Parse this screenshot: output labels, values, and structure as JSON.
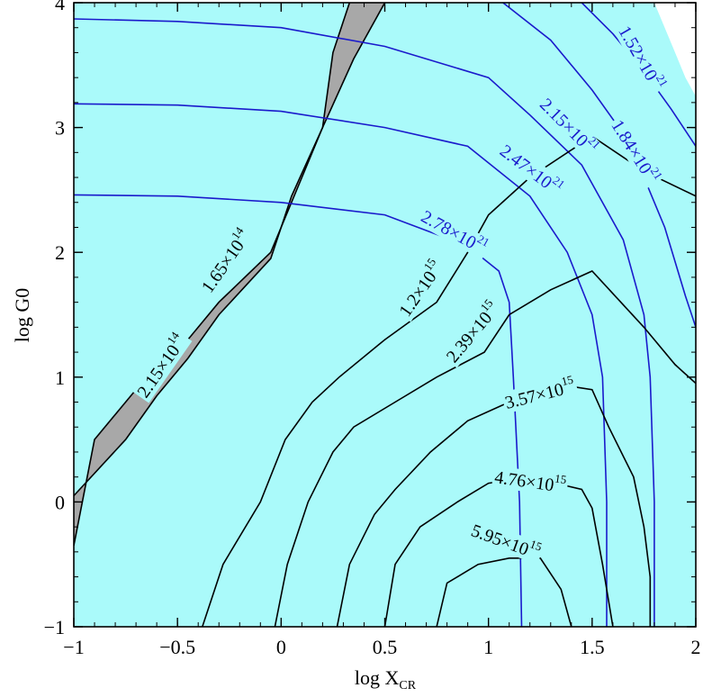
{
  "chart_data": {
    "type": "contour",
    "xlabel": "log X",
    "xlabel_sub": "CR",
    "ylabel": "log G0",
    "xlim": [
      -1,
      2
    ],
    "ylim": [
      -1,
      4
    ],
    "x_ticks": [
      {
        "value": -1,
        "label": "−1"
      },
      {
        "value": -0.5,
        "label": "−0.5"
      },
      {
        "value": 0,
        "label": "0"
      },
      {
        "value": 0.5,
        "label": "0.5"
      },
      {
        "value": 1,
        "label": "1"
      },
      {
        "value": 1.5,
        "label": "1.5"
      },
      {
        "value": 2,
        "label": "2"
      }
    ],
    "y_ticks": [
      {
        "value": -1,
        "label": "−1"
      },
      {
        "value": 0,
        "label": "0"
      },
      {
        "value": 1,
        "label": "1"
      },
      {
        "value": 2,
        "label": "2"
      },
      {
        "value": 3,
        "label": "3"
      },
      {
        "value": 4,
        "label": "4"
      }
    ],
    "colors": {
      "background": "#aafafa",
      "band": "#a8a8a8",
      "blue_contour": "#1a1acc",
      "black_contour": "#000000",
      "white_corner": "#ffffff"
    },
    "shaded_band": {
      "left_edge": [
        [
          -1,
          -0.35
        ],
        [
          -0.9,
          0.5
        ],
        [
          -0.65,
          1.0
        ],
        [
          -0.45,
          1.3
        ],
        [
          -0.3,
          1.6
        ],
        [
          -0.05,
          2.0
        ],
        [
          0.1,
          2.6
        ],
        [
          0.2,
          3.0
        ],
        [
          0.25,
          3.6
        ],
        [
          0.33,
          4.0
        ]
      ],
      "right_edge": [
        [
          -1,
          0.05
        ],
        [
          -0.75,
          0.5
        ],
        [
          -0.6,
          0.85
        ],
        [
          -0.45,
          1.15
        ],
        [
          -0.3,
          1.5
        ],
        [
          -0.05,
          1.95
        ],
        [
          0.05,
          2.45
        ],
        [
          0.2,
          3.0
        ],
        [
          0.35,
          3.55
        ],
        [
          0.5,
          4.0
        ]
      ]
    },
    "white_corner": [
      [
        1.8,
        4.0
      ],
      [
        2.0,
        4.0
      ],
      [
        2.0,
        3.25
      ],
      [
        1.95,
        3.4
      ],
      [
        1.9,
        3.6
      ]
    ],
    "blue_contours": [
      {
        "label_base": "2.78×10",
        "label_exp": "21",
        "points": [
          [
            -1,
            2.46
          ],
          [
            -0.5,
            2.45
          ],
          [
            0.0,
            2.4
          ],
          [
            0.5,
            2.3
          ],
          [
            0.9,
            2.05
          ],
          [
            1.05,
            1.85
          ],
          [
            1.1,
            1.6
          ],
          [
            1.12,
            1.0
          ],
          [
            1.15,
            0.0
          ],
          [
            1.16,
            -1.0
          ]
        ],
        "label_at": [
          0.83,
          2.15
        ],
        "label_angle": 29
      },
      {
        "label_base": "2.47×10",
        "label_exp": "21",
        "points": [
          [
            -1,
            3.19
          ],
          [
            -0.5,
            3.18
          ],
          [
            0.0,
            3.13
          ],
          [
            0.5,
            3.0
          ],
          [
            0.9,
            2.85
          ],
          [
            1.2,
            2.45
          ],
          [
            1.38,
            2.0
          ],
          [
            1.5,
            1.5
          ],
          [
            1.55,
            1.0
          ],
          [
            1.57,
            0.0
          ],
          [
            1.57,
            -1.0
          ]
        ],
        "label_at": [
          1.2,
          2.65
        ],
        "label_angle": 37
      },
      {
        "label_base": "2.15×10",
        "label_exp": "21",
        "points": [
          [
            -1,
            3.87
          ],
          [
            -0.5,
            3.85
          ],
          [
            0.0,
            3.8
          ],
          [
            0.5,
            3.65
          ],
          [
            1.0,
            3.4
          ],
          [
            1.2,
            3.1
          ],
          [
            1.45,
            2.7
          ],
          [
            1.65,
            2.1
          ],
          [
            1.75,
            1.5
          ],
          [
            1.78,
            1.0
          ],
          [
            1.8,
            0.0
          ],
          [
            1.8,
            -1.0
          ]
        ],
        "label_at": [
          1.38,
          3.0
        ],
        "label_angle": 45
      },
      {
        "label_base": "1.84×10",
        "label_exp": "21",
        "points": [
          [
            1.07,
            4.0
          ],
          [
            1.3,
            3.7
          ],
          [
            1.5,
            3.3
          ],
          [
            1.65,
            2.95
          ],
          [
            1.75,
            2.6
          ],
          [
            1.85,
            2.2
          ],
          [
            1.95,
            1.65
          ],
          [
            2.0,
            1.4
          ]
        ],
        "label_at": [
          1.7,
          2.8
        ],
        "label_angle": 58
      },
      {
        "label_base": "1.52×10",
        "label_exp": "21",
        "points": [
          [
            1.45,
            4.0
          ],
          [
            1.6,
            3.75
          ],
          [
            1.75,
            3.45
          ],
          [
            1.88,
            3.15
          ],
          [
            2.0,
            2.85
          ]
        ],
        "label_at": [
          1.73,
          3.55
        ],
        "label_angle": 60
      }
    ],
    "black_contours": [
      {
        "label_base": "1.2×10",
        "label_exp": "15",
        "points": [
          [
            -0.38,
            -1.0
          ],
          [
            -0.28,
            -0.5
          ],
          [
            -0.1,
            0.0
          ],
          [
            0.02,
            0.5
          ],
          [
            0.15,
            0.8
          ],
          [
            0.28,
            1.0
          ],
          [
            0.5,
            1.3
          ],
          [
            0.75,
            1.6
          ],
          [
            0.9,
            2.0
          ],
          [
            1.0,
            2.3
          ],
          [
            1.2,
            2.6
          ],
          [
            1.5,
            2.93
          ],
          [
            1.75,
            2.65
          ],
          [
            2.0,
            2.45
          ]
        ],
        "label_at": [
          0.68,
          1.7
        ],
        "label_angle": -55
      },
      {
        "label_base": "2.39×10",
        "label_exp": "15",
        "points": [
          [
            -0.03,
            -1.0
          ],
          [
            0.03,
            -0.5
          ],
          [
            0.13,
            0.0
          ],
          [
            0.25,
            0.4
          ],
          [
            0.35,
            0.6
          ],
          [
            0.55,
            0.8
          ],
          [
            0.75,
            1.0
          ],
          [
            0.98,
            1.2
          ],
          [
            1.1,
            1.5
          ],
          [
            1.3,
            1.7
          ],
          [
            1.5,
            1.85
          ],
          [
            1.75,
            1.4
          ],
          [
            1.9,
            1.1
          ],
          [
            2.0,
            0.95
          ]
        ],
        "label_at": [
          0.93,
          1.35
        ],
        "label_angle": -50
      },
      {
        "label_base": "3.57×10",
        "label_exp": "15",
        "points": [
          [
            0.27,
            -1.0
          ],
          [
            0.33,
            -0.5
          ],
          [
            0.45,
            -0.1
          ],
          [
            0.55,
            0.1
          ],
          [
            0.72,
            0.4
          ],
          [
            0.9,
            0.65
          ],
          [
            1.1,
            0.8
          ],
          [
            1.3,
            0.95
          ],
          [
            1.5,
            0.9
          ],
          [
            1.58,
            0.6
          ],
          [
            1.7,
            0.2
          ],
          [
            1.75,
            -0.2
          ],
          [
            1.78,
            -0.6
          ],
          [
            1.78,
            -1.0
          ]
        ],
        "label_at": [
          1.25,
          0.85
        ],
        "label_angle": -14
      },
      {
        "label_base": "4.76×10",
        "label_exp": "15",
        "points": [
          [
            0.5,
            -1.0
          ],
          [
            0.55,
            -0.5
          ],
          [
            0.67,
            -0.2
          ],
          [
            0.85,
            0.0
          ],
          [
            1.0,
            0.15
          ],
          [
            1.2,
            0.2
          ],
          [
            1.45,
            0.1
          ],
          [
            1.5,
            -0.05
          ],
          [
            1.55,
            -0.5
          ],
          [
            1.6,
            -1.0
          ]
        ],
        "label_at": [
          1.2,
          0.15
        ],
        "label_angle": 8
      },
      {
        "label_base": "5.95×10",
        "label_exp": "15",
        "points": [
          [
            0.75,
            -1.0
          ],
          [
            0.8,
            -0.65
          ],
          [
            0.95,
            -0.5
          ],
          [
            1.1,
            -0.45
          ],
          [
            1.25,
            -0.45
          ],
          [
            1.35,
            -0.7
          ],
          [
            1.4,
            -1.0
          ]
        ],
        "label_at": [
          1.08,
          -0.33
        ],
        "label_angle": 20
      }
    ],
    "band_labels": [
      {
        "label_base": "1.65×10",
        "label_exp": "14",
        "at": [
          -0.26,
          1.92
        ],
        "angle": -55
      },
      {
        "label_base": "2.15×10",
        "label_exp": "14",
        "at": [
          -0.57,
          1.08
        ],
        "angle": -55
      }
    ]
  }
}
